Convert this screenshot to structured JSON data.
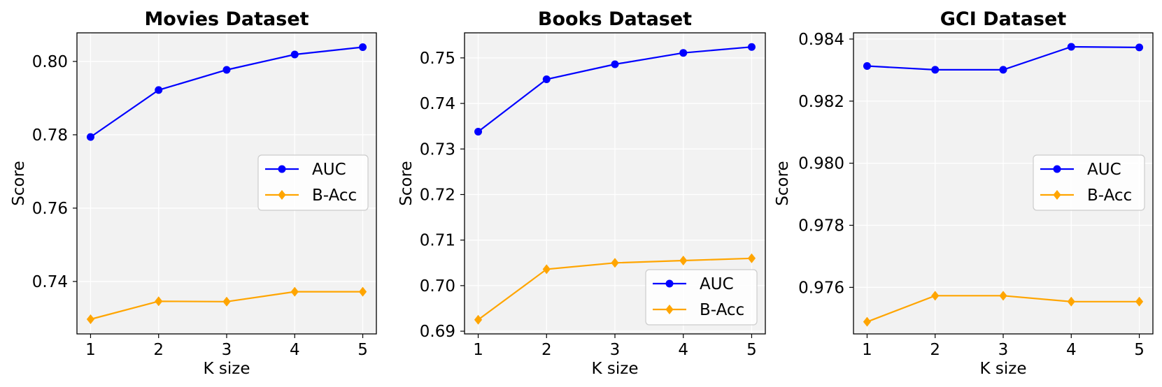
{
  "chart_data": [
    {
      "type": "line",
      "title": "Movies Dataset",
      "xlabel": "K size",
      "ylabel": "Score",
      "x": [
        1,
        2,
        3,
        4,
        5
      ],
      "xlim": [
        0.8,
        5.2
      ],
      "ylim": [
        0.7257,
        0.8078
      ],
      "yticks": [
        0.74,
        0.76,
        0.78,
        0.8
      ],
      "ytick_labels": [
        "0.74",
        "0.76",
        "0.78",
        "0.80"
      ],
      "grid": true,
      "legend_position": "center-right",
      "series": [
        {
          "name": "AUC",
          "color": "#0000ff",
          "marker": "circle",
          "values": [
            0.7794,
            0.7922,
            0.7977,
            0.8019,
            0.8039
          ]
        },
        {
          "name": "B-Acc",
          "color": "#ffa500",
          "marker": "diamond",
          "values": [
            0.7297,
            0.7346,
            0.7345,
            0.7372,
            0.7372
          ]
        }
      ]
    },
    {
      "type": "line",
      "title": "Books Dataset",
      "xlabel": "K size",
      "ylabel": "Score",
      "x": [
        1,
        2,
        3,
        4,
        5
      ],
      "xlim": [
        0.8,
        5.2
      ],
      "ylim": [
        0.6894,
        0.7555
      ],
      "yticks": [
        0.69,
        0.7,
        0.71,
        0.72,
        0.73,
        0.74,
        0.75
      ],
      "ytick_labels": [
        "0.69",
        "0.70",
        "0.71",
        "0.72",
        "0.73",
        "0.74",
        "0.75"
      ],
      "grid": true,
      "legend_position": "lower-right",
      "series": [
        {
          "name": "AUC",
          "color": "#0000ff",
          "marker": "circle",
          "values": [
            0.7338,
            0.7453,
            0.7486,
            0.7511,
            0.7524
          ]
        },
        {
          "name": "B-Acc",
          "color": "#ffa500",
          "marker": "diamond",
          "values": [
            0.6925,
            0.7036,
            0.705,
            0.7055,
            0.706
          ]
        }
      ]
    },
    {
      "type": "line",
      "title": "GCI Dataset",
      "xlabel": "K size",
      "ylabel": "Score",
      "x": [
        1,
        2,
        3,
        4,
        5
      ],
      "xlim": [
        0.8,
        5.2
      ],
      "ylim": [
        0.9745,
        0.9842
      ],
      "yticks": [
        0.976,
        0.978,
        0.98,
        0.982,
        0.984
      ],
      "ytick_labels": [
        "0.976",
        "0.978",
        "0.980",
        "0.982",
        "0.984"
      ],
      "grid": true,
      "legend_position": "center-right",
      "series": [
        {
          "name": "AUC",
          "color": "#0000ff",
          "marker": "circle",
          "values": [
            0.98313,
            0.98301,
            0.98301,
            0.98375,
            0.98373
          ]
        },
        {
          "name": "B-Acc",
          "color": "#ffa500",
          "marker": "diamond",
          "values": [
            0.97489,
            0.97573,
            0.97573,
            0.97554,
            0.97554
          ]
        }
      ]
    }
  ]
}
